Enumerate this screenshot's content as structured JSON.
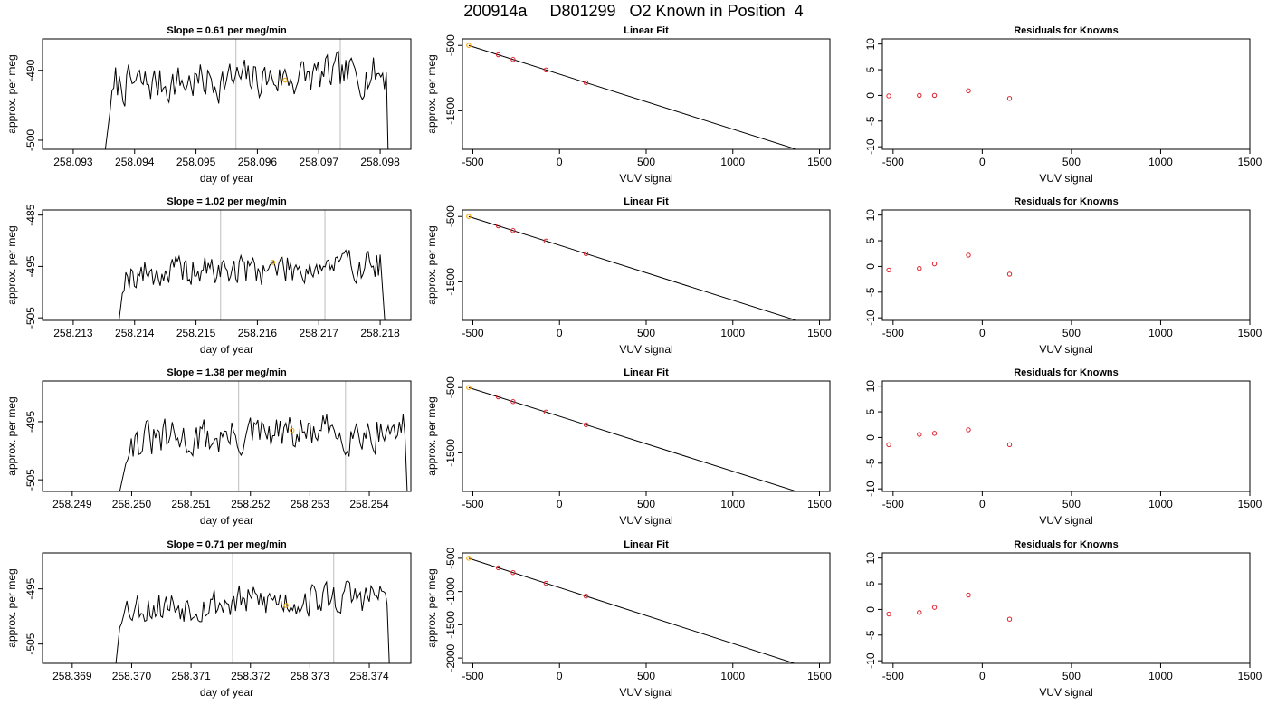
{
  "page_title": "200914a     D801299   O2 Known in Position  4",
  "chart_data": [
    {
      "type": "line",
      "row": 0,
      "col": 0,
      "title": "Slope =  0.61  per meg/min",
      "xlabel": "day of year",
      "ylabel": "approx. per meg",
      "xlim": [
        258.0925,
        258.0985
      ],
      "ylim": [
        -501.3,
        -485.5
      ],
      "x_ticks": [
        258.093,
        258.094,
        258.095,
        258.096,
        258.097,
        258.098
      ],
      "x_tick_decimals": 3,
      "y_ticks": [
        -490,
        -500
      ],
      "x_start": 258.0934,
      "x_end": 258.09815,
      "signal_start": 258.0936,
      "signal_end": 258.0981,
      "plateau": -492.2,
      "amp": 1.6,
      "drop": -510,
      "lead_start": -510,
      "seed": 7,
      "vlines": [
        258.09565,
        258.09735
      ],
      "highlight": {
        "x": 258.09645,
        "y": -491.4
      }
    },
    {
      "type": "scatter",
      "row": 0,
      "col": 1,
      "title": "Linear Fit",
      "xlabel": "VUV signal",
      "ylabel": "approx. per meg",
      "xlim": [
        -560,
        1560
      ],
      "ylim": [
        -2090,
        -400
      ],
      "x_ticks": [
        -500,
        0,
        500,
        1000,
        1500
      ],
      "y_ticks": [
        -500,
        -1500
      ],
      "points": [
        {
          "x": -524,
          "y": -500
        },
        {
          "x": -353,
          "y": -643
        },
        {
          "x": -268,
          "y": -715
        },
        {
          "x": -78,
          "y": -876
        },
        {
          "x": 153,
          "y": -1069
        }
      ],
      "fit_line": {
        "x": [
          -524,
          1425
        ],
        "y": [
          -500,
          -2139
        ]
      },
      "highlight_index": 0
    },
    {
      "type": "scatter",
      "row": 0,
      "col": 2,
      "title": "Residuals for Knowns",
      "xlabel": "VUV signal",
      "ylabel": "",
      "xlim": [
        -560,
        1500
      ],
      "ylim": [
        -10.5,
        11
      ],
      "x_ticks": [
        -500,
        0,
        500,
        1000,
        1500
      ],
      "y_ticks": [
        10,
        5,
        0,
        -5,
        -10
      ],
      "points": [
        {
          "x": -524,
          "y": -0.1
        },
        {
          "x": -353,
          "y": 0.0
        },
        {
          "x": -268,
          "y": 0.0
        },
        {
          "x": -78,
          "y": 0.9
        },
        {
          "x": 153,
          "y": -0.6
        }
      ]
    },
    {
      "type": "line",
      "row": 1,
      "col": 0,
      "title": "Slope =  1.02  per meg/min",
      "xlabel": "day of year",
      "ylabel": "approx. per meg",
      "xlim": [
        258.2125,
        258.2185
      ],
      "ylim": [
        -505.5,
        -484
      ],
      "x_ticks": [
        258.213,
        258.214,
        258.215,
        258.216,
        258.217,
        258.218
      ],
      "x_tick_decimals": 3,
      "y_ticks": [
        -485,
        -495,
        -505
      ],
      "x_start": 258.2137,
      "x_end": 258.2181,
      "signal_start": 258.2138,
      "signal_end": 258.218,
      "plateau": -496.5,
      "amp": 1.8,
      "drop": -510,
      "lead_start": -510,
      "seed": 19,
      "vlines": [
        258.2154,
        258.2171
      ],
      "highlight": {
        "x": 258.21625,
        "y": -494.2
      }
    },
    {
      "type": "scatter",
      "row": 1,
      "col": 1,
      "title": "Linear Fit",
      "xlabel": "VUV signal",
      "ylabel": "approx. per meg",
      "xlim": [
        -560,
        1560
      ],
      "ylim": [
        -2090,
        -400
      ],
      "x_ticks": [
        -500,
        0,
        500,
        1000,
        1500
      ],
      "y_ticks": [
        -500,
        -1500
      ],
      "points": [
        {
          "x": -524,
          "y": -500
        },
        {
          "x": -353,
          "y": -643
        },
        {
          "x": -268,
          "y": -715
        },
        {
          "x": -78,
          "y": -876
        },
        {
          "x": 153,
          "y": -1069
        }
      ],
      "fit_line": {
        "x": [
          -524,
          1425
        ],
        "y": [
          -500,
          -2139
        ]
      },
      "highlight_index": 0
    },
    {
      "type": "scatter",
      "row": 1,
      "col": 2,
      "title": "Residuals for Knowns",
      "xlabel": "VUV signal",
      "ylabel": "",
      "xlim": [
        -560,
        1500
      ],
      "ylim": [
        -10.5,
        11
      ],
      "x_ticks": [
        -500,
        0,
        500,
        1000,
        1500
      ],
      "y_ticks": [
        10,
        5,
        0,
        -5,
        -10
      ],
      "points": [
        {
          "x": -524,
          "y": -0.7
        },
        {
          "x": -353,
          "y": -0.4
        },
        {
          "x": -268,
          "y": 0.5
        },
        {
          "x": -78,
          "y": 2.2
        },
        {
          "x": 153,
          "y": -1.5
        }
      ]
    },
    {
      "type": "line",
      "row": 2,
      "col": 0,
      "title": "Slope =  1.38  per meg/min",
      "xlabel": "day of year",
      "ylabel": "approx. per meg",
      "xlim": [
        258.2485,
        258.2547
      ],
      "ylim": [
        -507,
        -488
      ],
      "x_ticks": [
        258.249,
        258.25,
        258.251,
        258.252,
        258.253,
        258.254
      ],
      "x_tick_decimals": 3,
      "y_ticks": [
        -495,
        -505
      ],
      "x_start": 258.2498,
      "x_end": 258.25465,
      "signal_start": 258.2499,
      "signal_end": 258.2546,
      "plateau": -498.5,
      "amp": 1.9,
      "drop": -510,
      "lead_start": -507,
      "seed": 31,
      "vlines": [
        258.2518,
        258.2536
      ],
      "highlight": {
        "x": 258.2527,
        "y": -496.5
      }
    },
    {
      "type": "scatter",
      "row": 2,
      "col": 1,
      "title": "Linear Fit",
      "xlabel": "VUV signal",
      "ylabel": "approx. per meg",
      "xlim": [
        -560,
        1560
      ],
      "ylim": [
        -2090,
        -400
      ],
      "x_ticks": [
        -500,
        0,
        500,
        1000,
        1500
      ],
      "y_ticks": [
        -500,
        -1500
      ],
      "points": [
        {
          "x": -524,
          "y": -500
        },
        {
          "x": -353,
          "y": -643
        },
        {
          "x": -268,
          "y": -715
        },
        {
          "x": -78,
          "y": -876
        },
        {
          "x": 153,
          "y": -1069
        }
      ],
      "fit_line": {
        "x": [
          -524,
          1425
        ],
        "y": [
          -500,
          -2139
        ]
      },
      "highlight_index": 0
    },
    {
      "type": "scatter",
      "row": 2,
      "col": 2,
      "title": "Residuals for Knowns",
      "xlabel": "VUV signal",
      "ylabel": "",
      "xlim": [
        -560,
        1500
      ],
      "ylim": [
        -10.5,
        11
      ],
      "x_ticks": [
        -500,
        0,
        500,
        1000,
        1500
      ],
      "y_ticks": [
        10,
        5,
        0,
        -5,
        -10
      ],
      "points": [
        {
          "x": -524,
          "y": -1.4
        },
        {
          "x": -353,
          "y": 0.6
        },
        {
          "x": -268,
          "y": 0.8
        },
        {
          "x": -78,
          "y": 1.5
        },
        {
          "x": 153,
          "y": -1.4
        }
      ]
    },
    {
      "type": "line",
      "row": 3,
      "col": 0,
      "title": "Slope =  0.71  per meg/min",
      "xlabel": "day of year",
      "ylabel": "approx. per meg",
      "xlim": [
        258.3685,
        258.3747
      ],
      "ylim": [
        -508.5,
        -488.5
      ],
      "x_ticks": [
        258.369,
        258.37,
        258.371,
        258.372,
        258.373,
        258.374
      ],
      "x_tick_decimals": 3,
      "y_ticks": [
        -495,
        -505
      ],
      "x_start": 258.3697,
      "x_end": 258.37435,
      "signal_start": 258.3698,
      "signal_end": 258.3743,
      "plateau": -498.3,
      "amp": 1.8,
      "drop": -512,
      "lead_start": -512,
      "seed": 53,
      "vlines": [
        258.3717,
        258.3734
      ],
      "highlight": {
        "x": 258.3726,
        "y": -498.0
      }
    },
    {
      "type": "scatter",
      "row": 3,
      "col": 1,
      "title": "Linear Fit",
      "xlabel": "VUV signal",
      "ylabel": "approx. per meg",
      "xlim": [
        -560,
        1560
      ],
      "ylim": [
        -2080,
        -420
      ],
      "x_ticks": [
        -500,
        0,
        500,
        1000,
        1500
      ],
      "y_ticks": [
        -500,
        -1000,
        -1500,
        -2000
      ],
      "points": [
        {
          "x": -524,
          "y": -500
        },
        {
          "x": -353,
          "y": -643
        },
        {
          "x": -268,
          "y": -715
        },
        {
          "x": -78,
          "y": -876
        },
        {
          "x": 153,
          "y": -1069
        }
      ],
      "fit_line": {
        "x": [
          -524,
          1425
        ],
        "y": [
          -500,
          -2139
        ]
      },
      "highlight_index": 0
    },
    {
      "type": "scatter",
      "row": 3,
      "col": 2,
      "title": "Residuals for Knowns",
      "xlabel": "VUV signal",
      "ylabel": "",
      "xlim": [
        -560,
        1500
      ],
      "ylim": [
        -10.5,
        11
      ],
      "x_ticks": [
        -500,
        0,
        500,
        1000,
        1500
      ],
      "y_ticks": [
        10,
        5,
        0,
        -5,
        -10
      ],
      "points": [
        {
          "x": -524,
          "y": -0.9
        },
        {
          "x": -353,
          "y": -0.6
        },
        {
          "x": -268,
          "y": 0.4
        },
        {
          "x": -78,
          "y": 2.8
        },
        {
          "x": 153,
          "y": -1.9
        }
      ]
    }
  ]
}
